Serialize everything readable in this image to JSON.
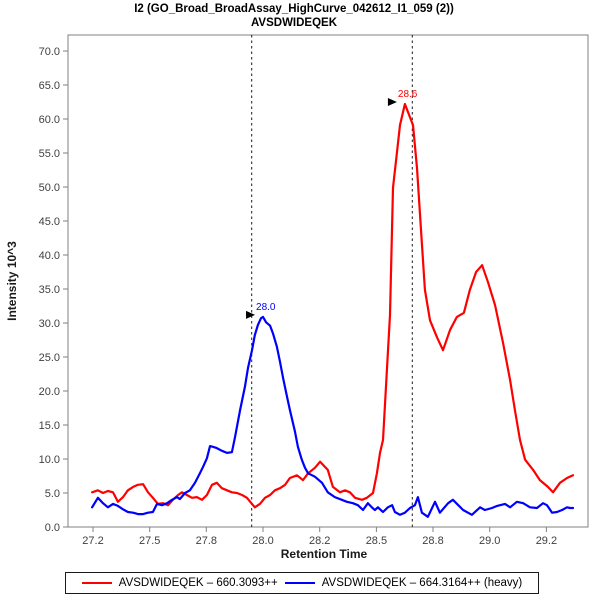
{
  "chart_data": {
    "type": "line",
    "title": "I2 (GO_Broad_BroadAssay_HighCurve_042612_I1_059 (2))",
    "subtitle": "AVSDWIDEQEK",
    "xlabel": "Retention Time",
    "ylabel": "Intensity 10^3",
    "x_tick_labels": [
      "27.2",
      "27.5",
      "27.8",
      "28.0",
      "28.2",
      "28.5",
      "28.8",
      "29.0",
      "29.2"
    ],
    "x_tick_values": [
      27.2,
      27.5,
      27.8,
      28.0,
      28.2,
      28.5,
      28.8,
      29.0,
      29.2
    ],
    "y_tick_labels": [
      "0.0",
      "5.0",
      "10.0",
      "15.0",
      "20.0",
      "25.0",
      "30.0",
      "35.0",
      "40.0",
      "45.0",
      "50.0",
      "55.0",
      "60.0",
      "65.0",
      "70.0"
    ],
    "y_tick_values": [
      0,
      5,
      10,
      15,
      20,
      25,
      30,
      35,
      40,
      45,
      50,
      55,
      60,
      65,
      70
    ],
    "ylim": [
      0,
      72.4
    ],
    "grid": false,
    "legend_position": "bottom",
    "boundary_lines_rt": [
      27.96,
      28.69
    ],
    "annotations": [
      {
        "label": "28.6",
        "rt": 28.651,
        "intensity": 62.2,
        "color": "#FF0000"
      },
      {
        "label": "28.0",
        "rt": 28.0,
        "intensity": 30.9,
        "color": "#0000FF"
      }
    ],
    "series": [
      {
        "name": "AVSDWIDEQEK - 660.3093++",
        "display_name": "AVSDWIDEQEK – 660.3093++",
        "color": "#FF0000",
        "points": [
          [
            27.195,
            5.1
          ],
          [
            27.226,
            5.4
          ],
          [
            27.253,
            5.0
          ],
          [
            27.279,
            5.3
          ],
          [
            27.306,
            5.1
          ],
          [
            27.332,
            3.7
          ],
          [
            27.359,
            4.4
          ],
          [
            27.385,
            5.4
          ],
          [
            27.412,
            5.9
          ],
          [
            27.438,
            6.2
          ],
          [
            27.465,
            6.3
          ],
          [
            27.491,
            5.1
          ],
          [
            27.517,
            4.3
          ],
          [
            27.544,
            3.4
          ],
          [
            27.57,
            3.5
          ],
          [
            27.597,
            3.2
          ],
          [
            27.623,
            4.0
          ],
          [
            27.65,
            4.7
          ],
          [
            27.671,
            5.1
          ],
          [
            27.697,
            4.7
          ],
          [
            27.724,
            4.3
          ],
          [
            27.75,
            4.4
          ],
          [
            27.777,
            4.0
          ],
          [
            27.802,
            4.7
          ],
          [
            27.82,
            6.2
          ],
          [
            27.837,
            6.5
          ],
          [
            27.855,
            5.7
          ],
          [
            27.873,
            5.4
          ],
          [
            27.89,
            5.1
          ],
          [
            27.908,
            5.0
          ],
          [
            27.926,
            4.7
          ],
          [
            27.943,
            4.3
          ],
          [
            27.961,
            3.4
          ],
          [
            27.971,
            2.9
          ],
          [
            27.989,
            3.4
          ],
          [
            28.007,
            4.3
          ],
          [
            28.025,
            4.7
          ],
          [
            28.042,
            5.4
          ],
          [
            28.06,
            5.7
          ],
          [
            28.078,
            6.2
          ],
          [
            28.095,
            7.2
          ],
          [
            28.12,
            7.6
          ],
          [
            28.141,
            6.9
          ],
          [
            28.159,
            7.9
          ],
          [
            28.183,
            8.7
          ],
          [
            28.202,
            9.6
          ],
          [
            28.243,
            8.4
          ],
          [
            28.27,
            5.9
          ],
          [
            28.307,
            5.1
          ],
          [
            28.334,
            5.4
          ],
          [
            28.36,
            5.1
          ],
          [
            28.387,
            4.3
          ],
          [
            28.424,
            4.0
          ],
          [
            28.45,
            4.3
          ],
          [
            28.482,
            5.0
          ],
          [
            28.503,
            7.9
          ],
          [
            28.519,
            10.9
          ],
          [
            28.535,
            12.8
          ],
          [
            28.572,
            31.2
          ],
          [
            28.588,
            49.9
          ],
          [
            28.625,
            59.1
          ],
          [
            28.651,
            62.2
          ],
          [
            28.694,
            59.1
          ],
          [
            28.715,
            52.8
          ],
          [
            28.736,
            43.7
          ],
          [
            28.757,
            34.9
          ],
          [
            28.784,
            30.4
          ],
          [
            28.814,
            27.9
          ],
          [
            28.835,
            26.0
          ],
          [
            28.86,
            29.0
          ],
          [
            28.884,
            30.9
          ],
          [
            28.909,
            31.5
          ],
          [
            28.93,
            34.9
          ],
          [
            28.952,
            37.5
          ],
          [
            28.973,
            38.5
          ],
          [
            28.994,
            36.0
          ],
          [
            29.019,
            32.6
          ],
          [
            29.047,
            27.1
          ],
          [
            29.072,
            21.6
          ],
          [
            29.089,
            17.2
          ],
          [
            29.107,
            12.8
          ],
          [
            29.125,
            9.9
          ],
          [
            29.153,
            8.4
          ],
          [
            29.177,
            6.9
          ],
          [
            29.208,
            5.9
          ],
          [
            29.235,
            5.1
          ],
          [
            29.272,
            6.5
          ],
          [
            29.309,
            7.2
          ],
          [
            29.341,
            7.6
          ]
        ]
      },
      {
        "name": "AVSDWIDEQEK - 664.3164++ (heavy)",
        "display_name": "AVSDWIDEQEK – 664.3164++ (heavy)",
        "color": "#0000FF",
        "points": [
          [
            27.195,
            2.9
          ],
          [
            27.226,
            4.3
          ],
          [
            27.253,
            3.5
          ],
          [
            27.279,
            2.9
          ],
          [
            27.306,
            3.4
          ],
          [
            27.332,
            3.1
          ],
          [
            27.359,
            2.6
          ],
          [
            27.385,
            2.2
          ],
          [
            27.412,
            2.1
          ],
          [
            27.438,
            1.9
          ],
          [
            27.465,
            1.9
          ],
          [
            27.491,
            2.1
          ],
          [
            27.517,
            2.2
          ],
          [
            27.539,
            3.4
          ],
          [
            27.565,
            3.2
          ],
          [
            27.592,
            3.5
          ],
          [
            27.618,
            4.0
          ],
          [
            27.644,
            4.4
          ],
          [
            27.66,
            4.1
          ],
          [
            27.687,
            5.0
          ],
          [
            27.713,
            5.4
          ],
          [
            27.74,
            6.5
          ],
          [
            27.766,
            7.9
          ],
          [
            27.782,
            8.8
          ],
          [
            27.802,
            10.1
          ],
          [
            27.813,
            11.9
          ],
          [
            27.823,
            11.8
          ],
          [
            27.837,
            11.6
          ],
          [
            27.855,
            11.2
          ],
          [
            27.873,
            10.9
          ],
          [
            27.89,
            11.0
          ],
          [
            27.901,
            13.2
          ],
          [
            27.919,
            17.2
          ],
          [
            27.936,
            20.6
          ],
          [
            27.947,
            23.4
          ],
          [
            27.961,
            26.0
          ],
          [
            27.971,
            28.2
          ],
          [
            27.982,
            29.7
          ],
          [
            27.993,
            30.7
          ],
          [
            28.0,
            30.9
          ],
          [
            28.011,
            30.1
          ],
          [
            28.025,
            29.6
          ],
          [
            28.035,
            28.5
          ],
          [
            28.049,
            26.5
          ],
          [
            28.06,
            24.3
          ],
          [
            28.071,
            21.9
          ],
          [
            28.085,
            19.1
          ],
          [
            28.095,
            17.2
          ],
          [
            28.113,
            14.0
          ],
          [
            28.123,
            11.8
          ],
          [
            28.137,
            9.9
          ],
          [
            28.148,
            8.7
          ],
          [
            28.159,
            7.9
          ],
          [
            28.183,
            7.4
          ],
          [
            28.212,
            6.5
          ],
          [
            28.243,
            5.1
          ],
          [
            28.28,
            4.4
          ],
          [
            28.317,
            4.0
          ],
          [
            28.344,
            3.7
          ],
          [
            28.376,
            3.5
          ],
          [
            28.402,
            3.2
          ],
          [
            28.429,
            2.5
          ],
          [
            28.455,
            3.5
          ],
          [
            28.476,
            2.9
          ],
          [
            28.492,
            2.5
          ],
          [
            28.508,
            2.9
          ],
          [
            28.535,
            2.2
          ],
          [
            28.561,
            2.9
          ],
          [
            28.583,
            3.2
          ],
          [
            28.598,
            2.2
          ],
          [
            28.625,
            1.8
          ],
          [
            28.651,
            2.1
          ],
          [
            28.678,
            2.8
          ],
          [
            28.704,
            3.2
          ],
          [
            28.72,
            4.4
          ],
          [
            28.741,
            2.1
          ],
          [
            28.773,
            1.5
          ],
          [
            28.807,
            3.7
          ],
          [
            28.824,
            2.1
          ],
          [
            28.853,
            3.5
          ],
          [
            28.87,
            4.0
          ],
          [
            28.906,
            2.5
          ],
          [
            28.937,
            1.8
          ],
          [
            28.966,
            2.9
          ],
          [
            28.983,
            2.5
          ],
          [
            29.008,
            2.8
          ],
          [
            29.026,
            3.1
          ],
          [
            29.054,
            3.4
          ],
          [
            29.072,
            2.9
          ],
          [
            29.096,
            3.7
          ],
          [
            29.118,
            3.5
          ],
          [
            29.142,
            2.9
          ],
          [
            29.167,
            2.8
          ],
          [
            29.188,
            3.5
          ],
          [
            29.203,
            3.2
          ],
          [
            29.23,
            2.1
          ],
          [
            29.256,
            2.2
          ],
          [
            29.283,
            2.5
          ],
          [
            29.309,
            2.9
          ],
          [
            29.325,
            2.8
          ],
          [
            29.341,
            2.8
          ]
        ]
      }
    ]
  }
}
